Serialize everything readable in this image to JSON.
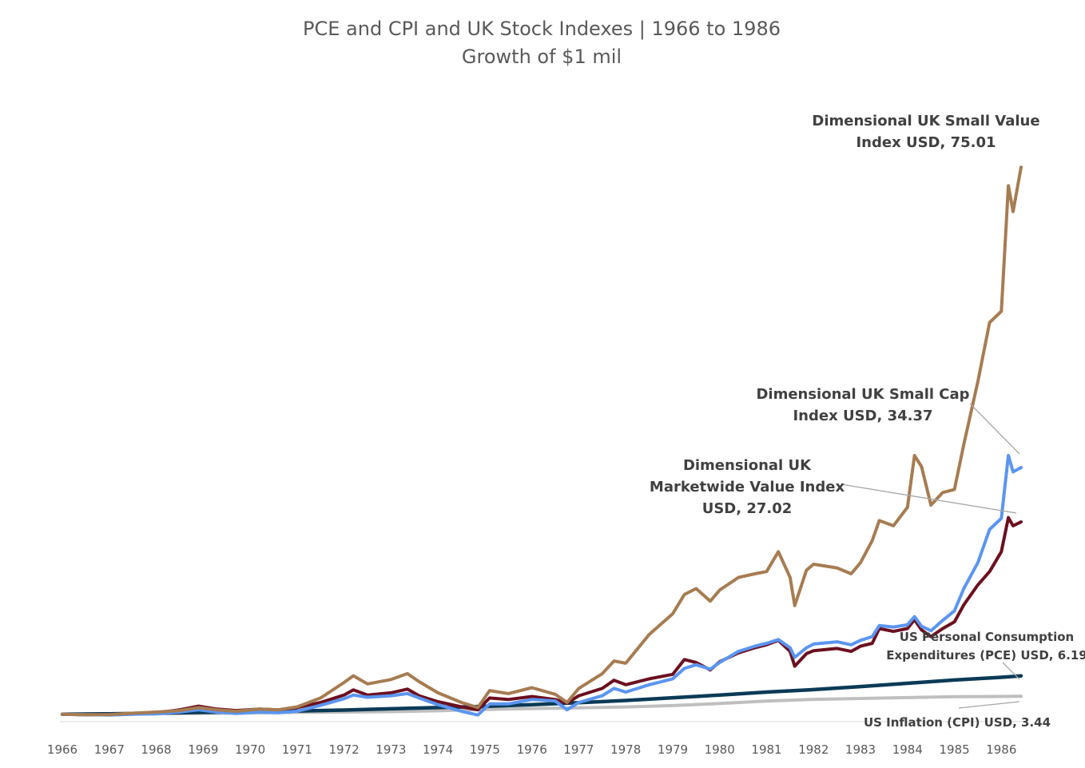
{
  "chart_data": {
    "type": "line",
    "title": "PCE and CPI and UK Stock Indexes | 1966 to 1986",
    "subtitle": "Growth of $1 mil",
    "xlabel": "",
    "ylabel": "",
    "x_ticks": [
      "1966",
      "1967",
      "1968",
      "1969",
      "1970",
      "1971",
      "1972",
      "1973",
      "1974",
      "1975",
      "1976",
      "1977",
      "1978",
      "1979",
      "1980",
      "1981",
      "1982",
      "1983",
      "1984",
      "1985",
      "1986"
    ],
    "xlim": [
      1966.0,
      1986.42
    ],
    "ylim": [
      0,
      80
    ],
    "grid": false,
    "legend": "none",
    "series": [
      {
        "key": "cpi",
        "color": "#bfbfbf",
        "points": [
          [
            1966.0,
            1.0
          ],
          [
            1967.0,
            1.03
          ],
          [
            1968.0,
            1.07
          ],
          [
            1969.0,
            1.12
          ],
          [
            1970.0,
            1.18
          ],
          [
            1971.0,
            1.25
          ],
          [
            1972.0,
            1.3
          ],
          [
            1973.0,
            1.35
          ],
          [
            1974.0,
            1.47
          ],
          [
            1975.0,
            1.65
          ],
          [
            1976.0,
            1.77
          ],
          [
            1977.0,
            1.86
          ],
          [
            1978.0,
            1.99
          ],
          [
            1979.0,
            2.17
          ],
          [
            1980.0,
            2.45
          ],
          [
            1981.0,
            2.78
          ],
          [
            1982.0,
            3.02
          ],
          [
            1983.0,
            3.13
          ],
          [
            1984.0,
            3.25
          ],
          [
            1985.0,
            3.37
          ],
          [
            1986.0,
            3.41
          ],
          [
            1986.42,
            3.44
          ]
        ]
      },
      {
        "key": "pce",
        "color": "#0b3a56",
        "points": [
          [
            1966.0,
            1.0
          ],
          [
            1967.0,
            1.06
          ],
          [
            1968.0,
            1.15
          ],
          [
            1969.0,
            1.25
          ],
          [
            1970.0,
            1.34
          ],
          [
            1971.0,
            1.44
          ],
          [
            1972.0,
            1.57
          ],
          [
            1973.0,
            1.74
          ],
          [
            1974.0,
            1.9
          ],
          [
            1975.0,
            2.07
          ],
          [
            1976.0,
            2.3
          ],
          [
            1977.0,
            2.56
          ],
          [
            1978.0,
            2.87
          ],
          [
            1979.0,
            3.23
          ],
          [
            1980.0,
            3.6
          ],
          [
            1981.0,
            4.0
          ],
          [
            1982.0,
            4.34
          ],
          [
            1983.0,
            4.75
          ],
          [
            1984.0,
            5.19
          ],
          [
            1985.0,
            5.63
          ],
          [
            1986.0,
            6.0
          ],
          [
            1986.42,
            6.19
          ]
        ]
      },
      {
        "key": "mkt_value",
        "color": "#6b1020",
        "points": [
          [
            1966.0,
            1.0
          ],
          [
            1966.5,
            0.93
          ],
          [
            1967.0,
            0.95
          ],
          [
            1967.5,
            1.1
          ],
          [
            1968.0,
            1.2
          ],
          [
            1968.5,
            1.6
          ],
          [
            1968.9,
            2.1
          ],
          [
            1969.3,
            1.7
          ],
          [
            1969.7,
            1.5
          ],
          [
            1970.2,
            1.7
          ],
          [
            1970.6,
            1.6
          ],
          [
            1971.0,
            1.9
          ],
          [
            1971.5,
            2.6
          ],
          [
            1972.0,
            3.6
          ],
          [
            1972.2,
            4.3
          ],
          [
            1972.5,
            3.6
          ],
          [
            1973.0,
            3.9
          ],
          [
            1973.35,
            4.4
          ],
          [
            1973.6,
            3.5
          ],
          [
            1974.0,
            2.7
          ],
          [
            1974.5,
            2.0
          ],
          [
            1974.85,
            1.6
          ],
          [
            1975.1,
            3.2
          ],
          [
            1975.5,
            3.0
          ],
          [
            1976.0,
            3.4
          ],
          [
            1976.5,
            3.0
          ],
          [
            1976.75,
            2.5
          ],
          [
            1977.0,
            3.5
          ],
          [
            1977.5,
            4.5
          ],
          [
            1977.75,
            5.6
          ],
          [
            1978.0,
            5.0
          ],
          [
            1978.5,
            5.8
          ],
          [
            1979.0,
            6.4
          ],
          [
            1979.25,
            8.4
          ],
          [
            1979.5,
            8.0
          ],
          [
            1979.8,
            7.0
          ],
          [
            1980.0,
            8.1
          ],
          [
            1980.4,
            9.3
          ],
          [
            1980.75,
            10.0
          ],
          [
            1981.0,
            10.4
          ],
          [
            1981.25,
            11.0
          ],
          [
            1981.5,
            9.5
          ],
          [
            1981.6,
            7.5
          ],
          [
            1981.85,
            9.2
          ],
          [
            1982.0,
            9.6
          ],
          [
            1982.5,
            9.9
          ],
          [
            1982.8,
            9.5
          ],
          [
            1983.0,
            10.2
          ],
          [
            1983.25,
            10.6
          ],
          [
            1983.4,
            12.6
          ],
          [
            1983.7,
            12.2
          ],
          [
            1984.0,
            12.6
          ],
          [
            1984.15,
            13.8
          ],
          [
            1984.3,
            12.4
          ],
          [
            1984.5,
            11.5
          ],
          [
            1984.75,
            12.6
          ],
          [
            1985.0,
            13.5
          ],
          [
            1985.2,
            15.8
          ],
          [
            1985.5,
            18.5
          ],
          [
            1985.75,
            20.3
          ],
          [
            1986.0,
            23.0
          ],
          [
            1986.15,
            27.6
          ],
          [
            1986.25,
            26.5
          ],
          [
            1986.42,
            27.02
          ]
        ]
      },
      {
        "key": "small_cap",
        "color": "#5b95f0",
        "points": [
          [
            1966.0,
            1.0
          ],
          [
            1966.5,
            0.95
          ],
          [
            1967.0,
            0.9
          ],
          [
            1967.5,
            1.0
          ],
          [
            1968.0,
            1.05
          ],
          [
            1968.5,
            1.3
          ],
          [
            1968.9,
            1.6
          ],
          [
            1969.3,
            1.3
          ],
          [
            1969.7,
            1.1
          ],
          [
            1970.2,
            1.3
          ],
          [
            1970.6,
            1.2
          ],
          [
            1971.0,
            1.4
          ],
          [
            1971.5,
            2.2
          ],
          [
            1972.0,
            3.1
          ],
          [
            1972.2,
            3.6
          ],
          [
            1972.5,
            3.3
          ],
          [
            1973.0,
            3.5
          ],
          [
            1973.35,
            3.8
          ],
          [
            1973.6,
            3.2
          ],
          [
            1974.0,
            2.3
          ],
          [
            1974.5,
            1.4
          ],
          [
            1974.85,
            0.9
          ],
          [
            1975.1,
            2.4
          ],
          [
            1975.5,
            2.4
          ],
          [
            1976.0,
            3.0
          ],
          [
            1976.5,
            2.8
          ],
          [
            1976.75,
            1.6
          ],
          [
            1977.0,
            2.6
          ],
          [
            1977.5,
            3.5
          ],
          [
            1977.75,
            4.5
          ],
          [
            1978.0,
            4.0
          ],
          [
            1978.5,
            5.0
          ],
          [
            1979.0,
            5.8
          ],
          [
            1979.25,
            7.2
          ],
          [
            1979.5,
            7.7
          ],
          [
            1979.8,
            7.1
          ],
          [
            1980.0,
            8.0
          ],
          [
            1980.4,
            9.5
          ],
          [
            1980.75,
            10.2
          ],
          [
            1981.0,
            10.6
          ],
          [
            1981.25,
            11.1
          ],
          [
            1981.5,
            10.0
          ],
          [
            1981.6,
            8.7
          ],
          [
            1981.85,
            10.0
          ],
          [
            1982.0,
            10.5
          ],
          [
            1982.5,
            10.8
          ],
          [
            1982.8,
            10.4
          ],
          [
            1983.0,
            11.0
          ],
          [
            1983.25,
            11.5
          ],
          [
            1983.4,
            13.0
          ],
          [
            1983.7,
            12.8
          ],
          [
            1984.0,
            13.1
          ],
          [
            1984.15,
            14.2
          ],
          [
            1984.3,
            12.9
          ],
          [
            1984.5,
            12.3
          ],
          [
            1984.75,
            13.7
          ],
          [
            1985.0,
            15.0
          ],
          [
            1985.2,
            18.0
          ],
          [
            1985.5,
            21.5
          ],
          [
            1985.75,
            26.0
          ],
          [
            1986.0,
            27.5
          ],
          [
            1986.15,
            36.0
          ],
          [
            1986.25,
            33.8
          ],
          [
            1986.42,
            34.37
          ]
        ]
      },
      {
        "key": "small_value",
        "color": "#a67c52",
        "points": [
          [
            1966.0,
            1.0
          ],
          [
            1966.5,
            0.93
          ],
          [
            1967.0,
            0.95
          ],
          [
            1967.5,
            1.15
          ],
          [
            1968.0,
            1.3
          ],
          [
            1968.5,
            1.5
          ],
          [
            1968.9,
            1.9
          ],
          [
            1969.3,
            1.6
          ],
          [
            1969.7,
            1.4
          ],
          [
            1970.2,
            1.7
          ],
          [
            1970.6,
            1.6
          ],
          [
            1971.0,
            2.0
          ],
          [
            1971.5,
            3.2
          ],
          [
            1972.0,
            5.3
          ],
          [
            1972.2,
            6.2
          ],
          [
            1972.5,
            5.1
          ],
          [
            1973.0,
            5.7
          ],
          [
            1973.35,
            6.5
          ],
          [
            1973.6,
            5.4
          ],
          [
            1974.0,
            3.9
          ],
          [
            1974.5,
            2.6
          ],
          [
            1974.85,
            1.9
          ],
          [
            1975.1,
            4.2
          ],
          [
            1975.5,
            3.8
          ],
          [
            1976.0,
            4.6
          ],
          [
            1976.5,
            3.7
          ],
          [
            1976.75,
            2.6
          ],
          [
            1977.0,
            4.5
          ],
          [
            1977.5,
            6.5
          ],
          [
            1977.75,
            8.2
          ],
          [
            1978.0,
            7.9
          ],
          [
            1978.5,
            11.8
          ],
          [
            1979.0,
            14.6
          ],
          [
            1979.25,
            17.2
          ],
          [
            1979.5,
            18.0
          ],
          [
            1979.8,
            16.3
          ],
          [
            1980.0,
            17.8
          ],
          [
            1980.4,
            19.5
          ],
          [
            1980.75,
            20.0
          ],
          [
            1981.0,
            20.3
          ],
          [
            1981.25,
            23.0
          ],
          [
            1981.5,
            19.5
          ],
          [
            1981.6,
            15.7
          ],
          [
            1981.85,
            20.5
          ],
          [
            1982.0,
            21.3
          ],
          [
            1982.5,
            20.8
          ],
          [
            1982.8,
            20.0
          ],
          [
            1983.0,
            21.5
          ],
          [
            1983.25,
            24.5
          ],
          [
            1983.4,
            27.2
          ],
          [
            1983.7,
            26.5
          ],
          [
            1984.0,
            29.0
          ],
          [
            1984.15,
            36.0
          ],
          [
            1984.3,
            34.5
          ],
          [
            1984.5,
            29.3
          ],
          [
            1984.75,
            31.0
          ],
          [
            1985.0,
            31.4
          ],
          [
            1985.2,
            37.5
          ],
          [
            1985.5,
            46.0
          ],
          [
            1985.75,
            54.0
          ],
          [
            1986.0,
            55.5
          ],
          [
            1986.15,
            72.5
          ],
          [
            1986.25,
            69.0
          ],
          [
            1986.42,
            75.01
          ]
        ]
      }
    ],
    "annotations": [
      {
        "lines": [
          "Dimensional UK Small Value",
          "Index USD, 75.01"
        ]
      },
      {
        "lines": [
          "Dimensional UK Small Cap",
          "Index USD, 34.37"
        ]
      },
      {
        "lines": [
          "Dimensional UK",
          "Marketwide Value Index",
          "USD, 27.02"
        ]
      },
      {
        "lines": [
          "US Personal Consumption",
          "Expenditures (PCE)  USD, 6.19"
        ]
      },
      {
        "lines": [
          "US Inflation (CPI) USD, 3.44"
        ]
      }
    ]
  }
}
